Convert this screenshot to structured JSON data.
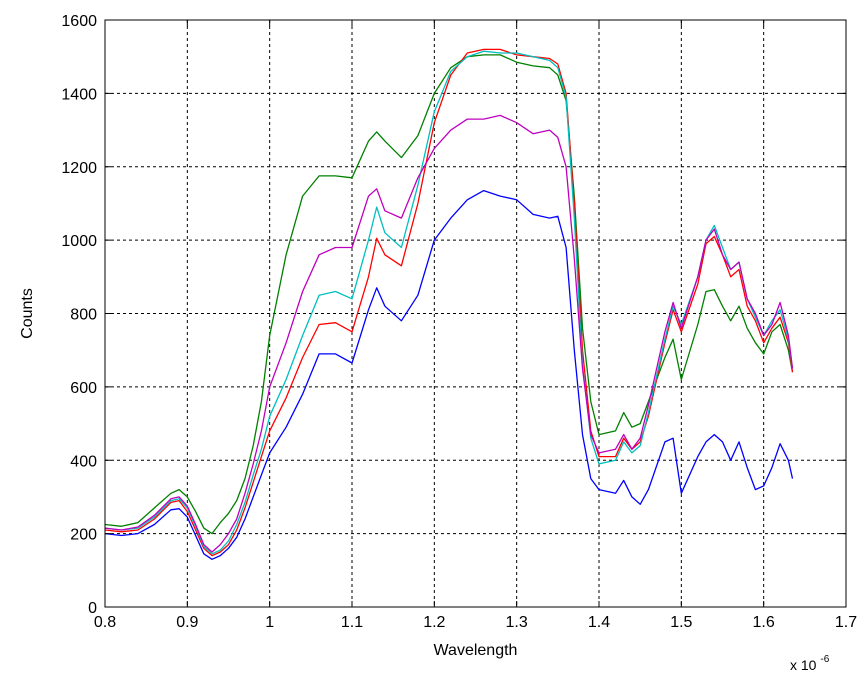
{
  "chart_data": {
    "type": "line",
    "title": "",
    "xlabel": "Wavelength",
    "ylabel": "Counts",
    "x_multiplier": "x 10",
    "x_multiplier_exp": "-6",
    "xlim": [
      0.8,
      1.7
    ],
    "ylim": [
      0,
      1600
    ],
    "xticks": [
      "0.8",
      "0.9",
      "1",
      "1.1",
      "1.2",
      "1.3",
      "1.4",
      "1.5",
      "1.6",
      "1.7"
    ],
    "yticks": [
      "0",
      "200",
      "400",
      "600",
      "800",
      "1000",
      "1200",
      "1400",
      "1600"
    ],
    "grid": true,
    "x": [
      0.8,
      0.82,
      0.84,
      0.86,
      0.88,
      0.89,
      0.9,
      0.91,
      0.92,
      0.93,
      0.94,
      0.95,
      0.96,
      0.97,
      0.98,
      0.99,
      1.0,
      1.02,
      1.04,
      1.06,
      1.08,
      1.1,
      1.12,
      1.13,
      1.14,
      1.16,
      1.18,
      1.2,
      1.22,
      1.24,
      1.26,
      1.28,
      1.3,
      1.32,
      1.34,
      1.35,
      1.36,
      1.37,
      1.38,
      1.39,
      1.4,
      1.42,
      1.43,
      1.44,
      1.45,
      1.46,
      1.48,
      1.49,
      1.5,
      1.52,
      1.53,
      1.54,
      1.55,
      1.56,
      1.57,
      1.58,
      1.59,
      1.6,
      1.61,
      1.62,
      1.63,
      1.635
    ],
    "series": [
      {
        "color": "#008000",
        "values": [
          225,
          220,
          230,
          270,
          310,
          320,
          300,
          260,
          215,
          200,
          230,
          255,
          290,
          350,
          440,
          560,
          740,
          960,
          1120,
          1175,
          1175,
          1170,
          1270,
          1295,
          1270,
          1225,
          1285,
          1400,
          1470,
          1500,
          1505,
          1505,
          1485,
          1475,
          1470,
          1450,
          1380,
          1120,
          760,
          560,
          470,
          480,
          530,
          490,
          500,
          560,
          680,
          730,
          620,
          770,
          860,
          865,
          820,
          780,
          820,
          760,
          720,
          690,
          750,
          770,
          700,
          640
        ]
      },
      {
        "color": "#0000ff",
        "values": [
          200,
          195,
          200,
          225,
          265,
          268,
          245,
          195,
          145,
          130,
          140,
          160,
          190,
          240,
          300,
          360,
          420,
          490,
          580,
          690,
          690,
          665,
          810,
          870,
          820,
          780,
          850,
          1000,
          1060,
          1110,
          1135,
          1120,
          1110,
          1070,
          1060,
          1065,
          980,
          700,
          470,
          350,
          320,
          310,
          345,
          300,
          280,
          320,
          450,
          460,
          310,
          410,
          450,
          470,
          450,
          400,
          450,
          380,
          320,
          330,
          380,
          445,
          400,
          350
        ]
      },
      {
        "color": "#ff0000",
        "values": [
          210,
          205,
          210,
          240,
          285,
          290,
          260,
          210,
          160,
          140,
          150,
          170,
          210,
          270,
          340,
          410,
          480,
          570,
          680,
          770,
          775,
          750,
          900,
          1005,
          960,
          930,
          1100,
          1320,
          1450,
          1510,
          1520,
          1520,
          1505,
          1500,
          1495,
          1480,
          1400,
          1100,
          700,
          480,
          410,
          410,
          460,
          430,
          450,
          520,
          720,
          810,
          750,
          880,
          990,
          1010,
          960,
          900,
          920,
          820,
          780,
          720,
          760,
          790,
          720,
          640
        ]
      },
      {
        "color": "#00bfbf",
        "values": [
          215,
          210,
          215,
          245,
          290,
          295,
          270,
          220,
          165,
          145,
          155,
          180,
          225,
          285,
          360,
          430,
          520,
          620,
          740,
          850,
          860,
          840,
          1000,
          1090,
          1020,
          980,
          1150,
          1350,
          1460,
          1500,
          1515,
          1510,
          1510,
          1500,
          1490,
          1470,
          1390,
          1060,
          660,
          460,
          390,
          400,
          450,
          420,
          440,
          530,
          730,
          820,
          770,
          900,
          1000,
          1040,
          980,
          920,
          940,
          840,
          790,
          740,
          780,
          810,
          730,
          650
        ]
      },
      {
        "color": "#bf00bf",
        "values": [
          215,
          210,
          218,
          250,
          295,
          300,
          275,
          225,
          170,
          150,
          170,
          200,
          240,
          310,
          390,
          480,
          600,
          720,
          860,
          960,
          980,
          980,
          1120,
          1140,
          1080,
          1060,
          1170,
          1250,
          1300,
          1330,
          1330,
          1340,
          1320,
          1290,
          1300,
          1280,
          1200,
          950,
          650,
          470,
          420,
          430,
          470,
          430,
          460,
          550,
          750,
          830,
          760,
          900,
          1000,
          1030,
          960,
          920,
          940,
          840,
          800,
          740,
          770,
          830,
          740,
          650
        ]
      }
    ]
  }
}
